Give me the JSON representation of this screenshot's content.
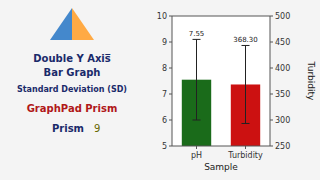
{
  "chart_data": {
    "type": "bar",
    "title": "Double Y Axis̅",
    "subtitle": "Bar Graph",
    "annotations": [
      "Standard Deviation (SD)",
      "GraphPad Prism",
      "Prism",
      "9"
    ],
    "categories": [
      "pH",
      "Turbidity"
    ],
    "series": [
      {
        "color": "#1a6b1a",
        "axis": "y",
        "values": [
          7.55,
          null
        ],
        "errors": [
          1.55,
          null
        ]
      },
      {
        "color": "#cc1111",
        "axis": "y2",
        "values": [
          null,
          368.3
        ],
        "errors": [
          null,
          75
        ],
        "value_labels": [
          null,
          "368.30"
        ]
      }
    ],
    "xlabel": "Sample",
    "y2label": "Turbidity",
    "ylim": [
      5,
      10
    ],
    "yticks": [
      5,
      6,
      7,
      8,
      9,
      10
    ],
    "y2lim": [
      250,
      500
    ],
    "y2ticks": [
      250,
      300,
      350,
      400,
      450,
      500
    ],
    "data_labels": true,
    "grid": false
  }
}
